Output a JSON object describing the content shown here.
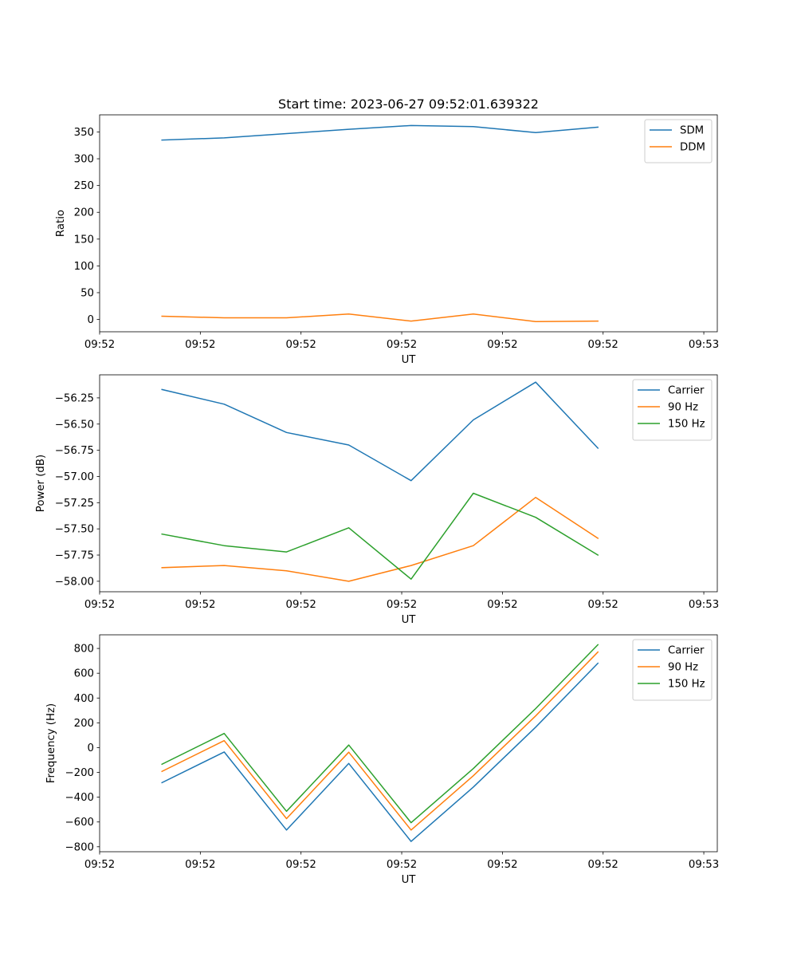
{
  "figure_title": "Start time: 2023-06-27 09:52:01.639322",
  "colors": {
    "blue": "#1f77b4",
    "orange": "#ff7f0e",
    "green": "#2ca02c",
    "axis": "#000000",
    "legend_border": "#cccccc"
  },
  "chart_data": [
    {
      "type": "line",
      "title": "Start time: 2023-06-27 09:52:01.639322",
      "xlabel": "UT",
      "ylabel": "Ratio",
      "x_tick_labels": [
        "09:52",
        "09:52",
        "09:52",
        "09:52",
        "09:52",
        "09:52",
        "09:53"
      ],
      "x": [
        0.6,
        1.2,
        1.8,
        2.4,
        3.0,
        3.6,
        4.2,
        4.8
      ],
      "xlim": [
        0,
        5.95
      ],
      "x_ticks": [
        0,
        0.97,
        1.94,
        2.91,
        3.88,
        4.85,
        5.82
      ],
      "ylim": [
        -23,
        382
      ],
      "y_ticks": [
        0,
        50,
        100,
        150,
        200,
        250,
        300,
        350
      ],
      "y_tick_labels": [
        "0",
        "50",
        "100",
        "150",
        "200",
        "250",
        "300",
        "350"
      ],
      "legend_position": "upper-right",
      "series": [
        {
          "name": "SDM",
          "color": "#1f77b4",
          "values": [
            335,
            339,
            347,
            355,
            362,
            360,
            349,
            359
          ]
        },
        {
          "name": "DDM",
          "color": "#ff7f0e",
          "values": [
            6,
            3,
            3,
            10,
            -3,
            10,
            -4,
            -3
          ]
        }
      ]
    },
    {
      "type": "line",
      "title": "",
      "xlabel": "UT",
      "ylabel": "Power (dB)",
      "x_tick_labels": [
        "09:52",
        "09:52",
        "09:52",
        "09:52",
        "09:52",
        "09:52",
        "09:53"
      ],
      "x": [
        0.6,
        1.2,
        1.8,
        2.4,
        3.0,
        3.6,
        4.2,
        4.8
      ],
      "xlim": [
        0,
        5.95
      ],
      "x_ticks": [
        0,
        0.97,
        1.94,
        2.91,
        3.88,
        4.85,
        5.82
      ],
      "ylim": [
        -58.1,
        -56.03
      ],
      "y_ticks": [
        -58.0,
        -57.75,
        -57.5,
        -57.25,
        -57.0,
        -56.75,
        -56.5,
        -56.25
      ],
      "y_tick_labels": [
        "−58.00",
        "−57.75",
        "−57.50",
        "−57.25",
        "−57.00",
        "−56.75",
        "−56.50",
        "−56.25"
      ],
      "legend_position": "upper-right",
      "series": [
        {
          "name": "Carrier",
          "color": "#1f77b4",
          "values": [
            -56.17,
            -56.31,
            -56.58,
            -56.7,
            -57.04,
            -56.46,
            -56.1,
            -56.73
          ]
        },
        {
          "name": "90 Hz",
          "color": "#ff7f0e",
          "values": [
            -57.87,
            -57.85,
            -57.9,
            -58.0,
            -57.85,
            -57.66,
            -57.2,
            -57.59
          ]
        },
        {
          "name": "150 Hz",
          "color": "#2ca02c",
          "values": [
            -57.55,
            -57.66,
            -57.72,
            -57.49,
            -57.98,
            -57.16,
            -57.39,
            -57.75
          ]
        }
      ]
    },
    {
      "type": "line",
      "title": "",
      "xlabel": "UT",
      "ylabel": "Frequency (Hz)",
      "x_tick_labels": [
        "09:52",
        "09:52",
        "09:52",
        "09:52",
        "09:52",
        "09:52",
        "09:53"
      ],
      "x": [
        0.6,
        1.2,
        1.8,
        2.4,
        3.0,
        3.6,
        4.2,
        4.8
      ],
      "xlim": [
        0,
        5.95
      ],
      "x_ticks": [
        0,
        0.97,
        1.94,
        2.91,
        3.88,
        4.85,
        5.82
      ],
      "ylim": [
        -840,
        910
      ],
      "y_ticks": [
        -800,
        -600,
        -400,
        -200,
        0,
        200,
        400,
        600,
        800
      ],
      "y_tick_labels": [
        "−800",
        "−600",
        "−400",
        "−200",
        "0",
        "200",
        "400",
        "600",
        "800"
      ],
      "legend_position": "upper-right",
      "series": [
        {
          "name": "Carrier",
          "color": "#1f77b4",
          "values": [
            -283,
            -35,
            -665,
            -128,
            -757,
            -318,
            165,
            680
          ]
        },
        {
          "name": "90 Hz",
          "color": "#ff7f0e",
          "values": [
            -192,
            56,
            -573,
            -37,
            -665,
            -227,
            256,
            771
          ]
        },
        {
          "name": "150 Hz",
          "color": "#2ca02c",
          "values": [
            -134,
            114,
            -514,
            21,
            -606,
            -169,
            315,
            830
          ]
        }
      ]
    }
  ]
}
